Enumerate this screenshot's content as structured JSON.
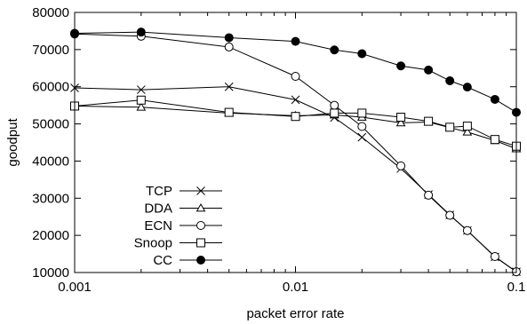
{
  "chart_data": {
    "type": "line",
    "xlabel": "packet error rate",
    "ylabel": "goodput",
    "xscale": "log",
    "xlim": [
      0.001,
      0.1
    ],
    "ylim": [
      10000,
      80000
    ],
    "x_ticks": [
      {
        "value": 0.001,
        "label": "0.001"
      },
      {
        "value": 0.01,
        "label": "0.01"
      },
      {
        "value": 0.1,
        "label": "0.1"
      }
    ],
    "y_ticks": [
      {
        "value": 10000,
        "label": "10000"
      },
      {
        "value": 20000,
        "label": "20000"
      },
      {
        "value": 30000,
        "label": "30000"
      },
      {
        "value": 40000,
        "label": "40000"
      },
      {
        "value": 50000,
        "label": "50000"
      },
      {
        "value": 60000,
        "label": "60000"
      },
      {
        "value": 70000,
        "label": "70000"
      },
      {
        "value": 80000,
        "label": "80000"
      }
    ],
    "grid": false,
    "legend_position": "bottom-left",
    "series": [
      {
        "name": "TCP",
        "marker": "x",
        "color": "#000000",
        "points": [
          [
            0.001,
            59700
          ],
          [
            0.002,
            59200
          ],
          [
            0.005,
            60000
          ],
          [
            0.01,
            56500
          ],
          [
            0.015,
            51700
          ],
          [
            0.02,
            46400
          ],
          [
            0.03,
            38000
          ],
          [
            0.04,
            31000
          ],
          [
            0.05,
            25500
          ],
          [
            0.06,
            21300
          ],
          [
            0.08,
            14200
          ],
          [
            0.1,
            10200
          ]
        ]
      },
      {
        "name": "DDA",
        "marker": "triangle",
        "color": "#000000",
        "points": [
          [
            0.001,
            54800
          ],
          [
            0.002,
            54500
          ],
          [
            0.005,
            52900
          ],
          [
            0.01,
            52200
          ],
          [
            0.015,
            52400
          ],
          [
            0.02,
            51800
          ],
          [
            0.03,
            50300
          ],
          [
            0.04,
            50500
          ],
          [
            0.05,
            49000
          ],
          [
            0.06,
            47800
          ],
          [
            0.08,
            45500
          ],
          [
            0.1,
            43300
          ]
        ]
      },
      {
        "name": "ECN",
        "marker": "circle-open",
        "color": "#000000",
        "points": [
          [
            0.001,
            74200
          ],
          [
            0.002,
            73600
          ],
          [
            0.005,
            70700
          ],
          [
            0.01,
            62800
          ],
          [
            0.015,
            55000
          ],
          [
            0.02,
            49300
          ],
          [
            0.03,
            38700
          ],
          [
            0.04,
            30800
          ],
          [
            0.05,
            25400
          ],
          [
            0.06,
            21300
          ],
          [
            0.08,
            14300
          ],
          [
            0.1,
            10200
          ]
        ]
      },
      {
        "name": "Snoop",
        "marker": "square-open",
        "color": "#000000",
        "points": [
          [
            0.001,
            54800
          ],
          [
            0.002,
            56400
          ],
          [
            0.005,
            53100
          ],
          [
            0.01,
            52000
          ],
          [
            0.015,
            52900
          ],
          [
            0.02,
            52900
          ],
          [
            0.03,
            51800
          ],
          [
            0.04,
            50700
          ],
          [
            0.05,
            49100
          ],
          [
            0.06,
            49400
          ],
          [
            0.08,
            45800
          ],
          [
            0.1,
            44000
          ]
        ]
      },
      {
        "name": "CC",
        "marker": "circle-filled",
        "color": "#000000",
        "points": [
          [
            0.001,
            74400
          ],
          [
            0.002,
            74700
          ],
          [
            0.005,
            73200
          ],
          [
            0.01,
            72200
          ],
          [
            0.015,
            69900
          ],
          [
            0.02,
            68900
          ],
          [
            0.03,
            65600
          ],
          [
            0.04,
            64500
          ],
          [
            0.05,
            61600
          ],
          [
            0.06,
            59900
          ],
          [
            0.08,
            56600
          ],
          [
            0.1,
            53100
          ]
        ]
      }
    ]
  }
}
